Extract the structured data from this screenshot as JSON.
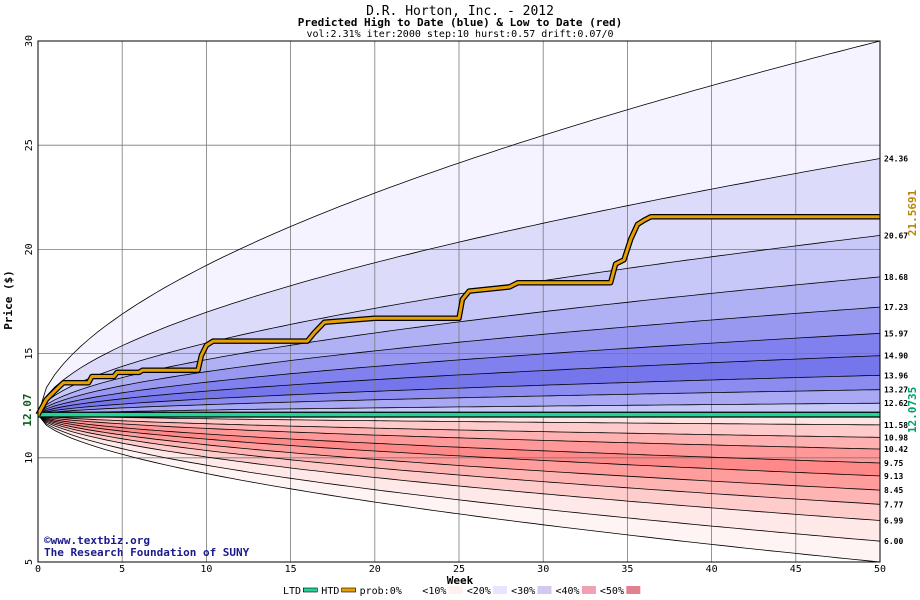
{
  "chart_data": {
    "type": "area",
    "title": "D.R. Horton, Inc. - 2012",
    "subtitle": "Predicted High to Date (blue) &  Low to Date (red)",
    "params": "vol:2.31% iter:2000 step:10 hurst:0.57 drift:0.07/0",
    "xlabel": "Week",
    "ylabel": "Price ($)",
    "xlim": [
      0,
      50
    ],
    "ylim": [
      5,
      30
    ],
    "x_ticks": [
      0,
      5,
      10,
      15,
      20,
      25,
      30,
      35,
      40,
      45,
      50
    ],
    "y_ticks": [
      5,
      10,
      15,
      20,
      25,
      30
    ],
    "grid": true,
    "start_price": 12.07,
    "start_label": "12.07",
    "band_lines": [
      {
        "label": "24.36",
        "end": 24.36
      },
      {
        "label": "20.67",
        "end": 20.67
      },
      {
        "label": "18.68",
        "end": 18.68
      },
      {
        "label": "17.23",
        "end": 17.23
      },
      {
        "label": "15.97",
        "end": 15.97
      },
      {
        "label": "14.90",
        "end": 14.9
      },
      {
        "label": "13.96",
        "end": 13.96
      },
      {
        "label": "13.27",
        "end": 13.27
      },
      {
        "label": "12.62",
        "end": 12.62
      },
      {
        "label": "11.58",
        "end": 11.58
      },
      {
        "label": "10.98",
        "end": 10.98
      },
      {
        "label": "10.42",
        "end": 10.42
      },
      {
        "label": "9.75",
        "end": 9.75
      },
      {
        "label": "9.13",
        "end": 9.13
      },
      {
        "label": "8.45",
        "end": 8.45
      },
      {
        "label": "7.77",
        "end": 7.77
      },
      {
        "label": "6.99",
        "end": 6.99
      },
      {
        "label": "6.00",
        "end": 6.0
      }
    ],
    "outer_upper_end": 30,
    "outer_lower_end": 5,
    "htd_series": {
      "name": "HTD",
      "points": [
        [
          0,
          12.07
        ],
        [
          0.5,
          12.8
        ],
        [
          1,
          13.2
        ],
        [
          1.5,
          13.6
        ],
        [
          3,
          13.6
        ],
        [
          3.2,
          13.9
        ],
        [
          4.5,
          13.9
        ],
        [
          4.7,
          14.1
        ],
        [
          6,
          14.1
        ],
        [
          6.2,
          14.2
        ],
        [
          9.5,
          14.2
        ],
        [
          9.7,
          14.9
        ],
        [
          10,
          15.4
        ],
        [
          10.4,
          15.6
        ],
        [
          16,
          15.6
        ],
        [
          16.4,
          16.0
        ],
        [
          17,
          16.5
        ],
        [
          20,
          16.7
        ],
        [
          25,
          16.7
        ],
        [
          25.2,
          17.6
        ],
        [
          25.6,
          18.0
        ],
        [
          28,
          18.2
        ],
        [
          28.5,
          18.4
        ],
        [
          34,
          18.4
        ],
        [
          34.3,
          19.3
        ],
        [
          34.8,
          19.5
        ],
        [
          35.2,
          20.5
        ],
        [
          35.6,
          21.2
        ],
        [
          36,
          21.4
        ],
        [
          36.4,
          21.57
        ],
        [
          50,
          21.57
        ]
      ]
    },
    "ltd_series": {
      "name": "LTD",
      "value": 12.0735
    },
    "htd_end_label": "21.5691",
    "ltd_end_label": "12.0735",
    "legend": [
      {
        "label": "LTD",
        "swatch": "ltd"
      },
      {
        "label": "HTD",
        "swatch": "htd"
      },
      {
        "label": "prob:0%",
        "swatch": "p0"
      },
      {
        "label": "<10%",
        "swatch": "p10"
      },
      {
        "label": "<20%",
        "swatch": "p20"
      },
      {
        "label": "<30%",
        "swatch": "p30"
      },
      {
        "label": "<40%",
        "swatch": "p40"
      },
      {
        "label": "<50%",
        "swatch": "p50"
      }
    ]
  },
  "credits": {
    "line1": "©www.textbiz.org",
    "line2": "The Research Foundation of SUNY"
  },
  "colors": {
    "htd": "#e8a000",
    "ltd": "#20d49a",
    "ltd_label": "#00a070",
    "htd_label": "#b8860b",
    "upper_bands": [
      "#f5f3ff",
      "#dcdcfa",
      "#c8c8f8",
      "#b0b0f4",
      "#9898f0",
      "#8080ee",
      "#7676ec",
      "#8c8cf0",
      "#a8a8f4",
      "#c8c8f8"
    ],
    "lower_bands": [
      "#ffe4e4",
      "#ffcaca",
      "#ffb0b0",
      "#ff9898",
      "#ff8888",
      "#ff9c9c",
      "#ffb4b4",
      "#ffcccc",
      "#ffe8e8",
      "#fff4f4"
    ]
  }
}
